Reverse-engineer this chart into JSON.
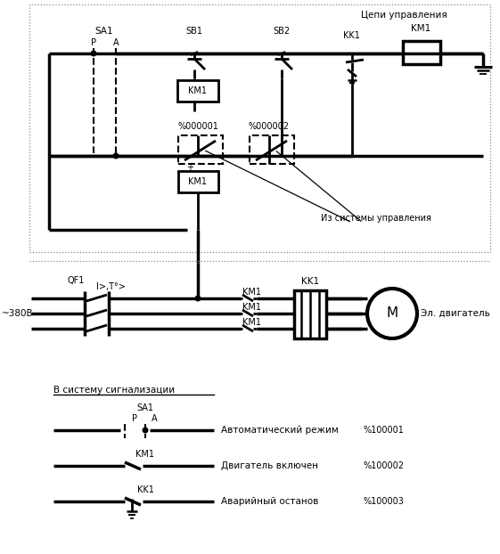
{
  "bg_color": "#ffffff",
  "label_tsepи": "Цепи управления",
  "label_iz_sys": "Из системы управления",
  "label_v_sys": "В систему сигнализации",
  "label_380": "~380В",
  "label_el_dv": "Эл. двигатель",
  "label_avto": "Автоматический режим",
  "label_dv_vkl": "Двигатель включен",
  "label_avar": "Аварийный останов",
  "label_pct100001": "%100001",
  "label_pct100002": "%100002",
  "label_pct100003": "%100003",
  "label_pct000001": "%000001",
  "label_pct000002": "%000002",
  "font_size": 7.5,
  "font_size_small": 7.0
}
